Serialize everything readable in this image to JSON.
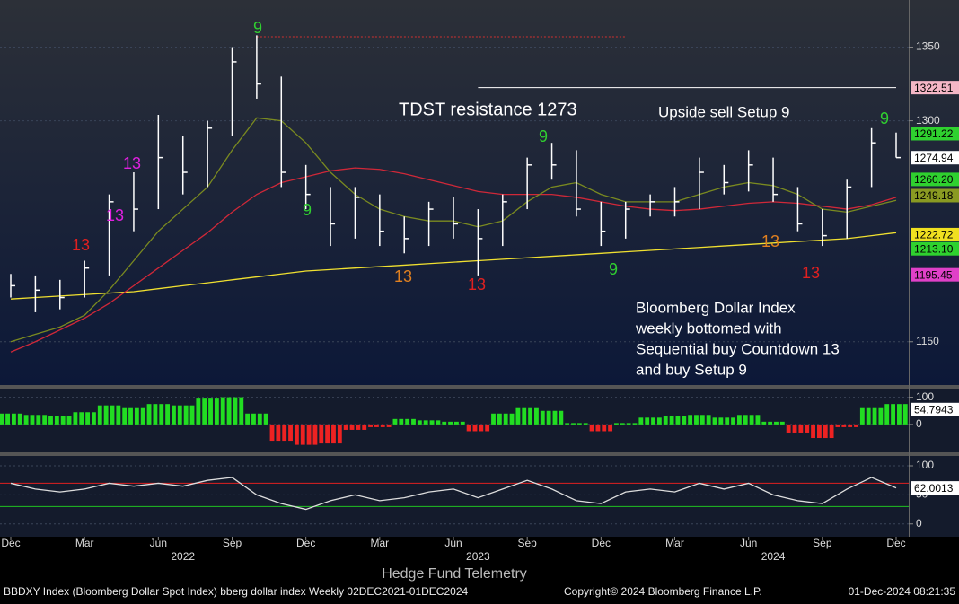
{
  "chart_data": [
    {
      "type": "ohlc",
      "x": [
        "2021-12",
        "2022-01",
        "2022-02",
        "2022-03",
        "2022-04",
        "2022-05",
        "2022-06",
        "2022-07",
        "2022-08",
        "2022-09",
        "2022-10",
        "2022-11",
        "2022-12",
        "2023-01",
        "2023-02",
        "2023-03",
        "2023-04",
        "2023-05",
        "2023-06",
        "2023-07",
        "2023-08",
        "2023-09",
        "2023-10",
        "2023-11",
        "2023-12",
        "2024-01",
        "2024-02",
        "2024-03",
        "2024-04",
        "2024-05",
        "2024-06",
        "2024-07",
        "2024-08",
        "2024-09",
        "2024-10",
        "2024-11",
        "2024-12"
      ],
      "high": [
        1196,
        1195,
        1192,
        1205,
        1250,
        1265,
        1304,
        1290,
        1300,
        1350,
        1358,
        1330,
        1270,
        1255,
        1255,
        1250,
        1235,
        1245,
        1248,
        1240,
        1250,
        1275,
        1285,
        1280,
        1245,
        1245,
        1250,
        1255,
        1275,
        1270,
        1280,
        1275,
        1255,
        1240,
        1260,
        1295,
        1292
      ],
      "low": [
        1180,
        1170,
        1172,
        1180,
        1195,
        1225,
        1240,
        1250,
        1255,
        1290,
        1315,
        1255,
        1240,
        1215,
        1220,
        1215,
        1210,
        1215,
        1220,
        1195,
        1215,
        1240,
        1260,
        1235,
        1215,
        1220,
        1235,
        1235,
        1240,
        1250,
        1252,
        1245,
        1225,
        1215,
        1220,
        1255,
        1275
      ],
      "close": [
        1188,
        1185,
        1180,
        1200,
        1245,
        1240,
        1275,
        1265,
        1295,
        1340,
        1325,
        1265,
        1250,
        1230,
        1248,
        1225,
        1220,
        1240,
        1230,
        1220,
        1245,
        1270,
        1270,
        1240,
        1225,
        1240,
        1245,
        1245,
        1265,
        1258,
        1270,
        1250,
        1230,
        1222,
        1255,
        1285,
        1275
      ],
      "bar_color": "#ffffff",
      "moving_averages": [
        {
          "color": "#f0e030",
          "values": [
            1179,
            1180,
            1181,
            1182,
            1183,
            1184,
            1186,
            1188,
            1190,
            1192,
            1194,
            1196,
            1198,
            1199,
            1200,
            1201,
            1202,
            1203,
            1204,
            1205,
            1206,
            1207,
            1208,
            1209,
            1210,
            1211,
            1212,
            1213,
            1214,
            1215,
            1216,
            1217,
            1218,
            1219,
            1220,
            1222,
            1224
          ]
        },
        {
          "color": "#d02838",
          "values": [
            1143,
            1150,
            1158,
            1166,
            1176,
            1188,
            1200,
            1212,
            1224,
            1238,
            1250,
            1258,
            1262,
            1266,
            1268,
            1267,
            1264,
            1260,
            1256,
            1252,
            1250,
            1250,
            1250,
            1248,
            1245,
            1242,
            1240,
            1239,
            1240,
            1242,
            1244,
            1245,
            1244,
            1242,
            1240,
            1243,
            1248
          ]
        },
        {
          "color": "#7a8a20",
          "values": [
            1150,
            1155,
            1160,
            1168,
            1185,
            1205,
            1225,
            1240,
            1255,
            1280,
            1302,
            1300,
            1285,
            1265,
            1250,
            1240,
            1235,
            1232,
            1232,
            1228,
            1232,
            1245,
            1255,
            1258,
            1250,
            1245,
            1245,
            1245,
            1250,
            1255,
            1258,
            1256,
            1250,
            1240,
            1238,
            1242,
            1246
          ]
        }
      ],
      "ylim": [
        1120,
        1382
      ],
      "yticks": [
        1150,
        1300,
        1350
      ],
      "levels": [
        {
          "value": 1357,
          "from": "2022-10",
          "to": "2024-01",
          "color": "#d03030"
        },
        {
          "value": 1322.51,
          "from": "2023-07",
          "to": "2024-12",
          "color": "#ffffff"
        }
      ],
      "markers": [
        {
          "value": 1322.51,
          "color": "#f4b6c6"
        },
        {
          "value": 1291.22,
          "color": "#2fd12f"
        },
        {
          "value": 1274.94,
          "color": "#ffffff"
        },
        {
          "value": 1260.2,
          "label": "1260.20",
          "color": "#2fd12f"
        },
        {
          "value": 1249.18,
          "color": "#8a9a22"
        },
        {
          "value": 1222.72,
          "color": "#f0e020"
        },
        {
          "value": 1213.1,
          "label": "1213.10",
          "color": "#2fd12f"
        },
        {
          "value": 1195.45,
          "color": "#e040c8"
        }
      ],
      "annotations": [
        "TDST resistance 1273",
        "Upside sell Setup 9"
      ],
      "note": [
        "Bloomberg Dollar Index",
        "weekly bottomed with",
        "Sequential buy Countdown 13",
        "and buy Setup 9"
      ],
      "td_labels": [
        {
          "text": "13",
          "color": "#e020e0"
        },
        {
          "text": "13",
          "color": "#e020e0"
        },
        {
          "text": "13",
          "color": "#e02020"
        },
        {
          "text": "13",
          "color": "#e08020"
        },
        {
          "text": "13",
          "color": "#e02020"
        },
        {
          "text": "9",
          "color": "#30d030"
        },
        {
          "text": "9",
          "color": "#30d030"
        },
        {
          "text": "9",
          "color": "#30d030"
        },
        {
          "text": "13",
          "color": "#e08020"
        },
        {
          "text": "13",
          "color": "#e02020"
        },
        {
          "text": "9",
          "color": "#30d030"
        },
        {
          "text": "9",
          "color": "#30d030"
        }
      ],
      "xticks": [
        {
          "value": "2021-12",
          "label": "Dec"
        },
        {
          "value": "2022-03",
          "label": "Mar"
        },
        {
          "value": "2022-06",
          "label": "Jun"
        },
        {
          "value": "2022-09",
          "label": "Sep"
        },
        {
          "value": "2022-12",
          "label": "Dec"
        },
        {
          "value": "2023-03",
          "label": "Mar"
        },
        {
          "value": "2023-06",
          "label": "Jun"
        },
        {
          "value": "2023-09",
          "label": "Sep"
        },
        {
          "value": "2023-12",
          "label": "Dec"
        },
        {
          "value": "2024-03",
          "label": "Mar"
        },
        {
          "value": "2024-06",
          "label": "Jun"
        },
        {
          "value": "2024-09",
          "label": "Sep"
        },
        {
          "value": "2024-12",
          "label": "Dec"
        }
      ],
      "years": [
        {
          "value": "2022-07",
          "label": "2022"
        },
        {
          "value": "2023-07",
          "label": "2023"
        },
        {
          "value": "2024-07",
          "label": "2024"
        }
      ]
    },
    {
      "type": "bar",
      "values": [
        40,
        35,
        30,
        45,
        70,
        60,
        75,
        70,
        95,
        100,
        40,
        -60,
        -75,
        -70,
        -20,
        -10,
        20,
        15,
        10,
        -25,
        40,
        60,
        50,
        5,
        -25,
        5,
        25,
        30,
        35,
        25,
        35,
        10,
        -30,
        -50,
        -10,
        60,
        75
      ],
      "positive_color": "#22dd22",
      "negative_color": "#ee2222",
      "ylim": [
        -106,
        135
      ],
      "yticks": [
        0,
        100
      ],
      "markers": [
        {
          "value": 54.7943,
          "color": "#ffffff"
        }
      ]
    },
    {
      "type": "line",
      "values": [
        70,
        60,
        55,
        60,
        70,
        65,
        70,
        65,
        75,
        80,
        50,
        35,
        25,
        40,
        50,
        40,
        45,
        55,
        60,
        45,
        60,
        75,
        60,
        40,
        35,
        55,
        60,
        55,
        70,
        60,
        70,
        50,
        40,
        35,
        60,
        80,
        62
      ],
      "color": "#dddddd",
      "ylim": [
        -22,
        117
      ],
      "yticks": [
        0,
        50,
        100
      ],
      "levels": [
        {
          "value": 70,
          "color": "#e02020"
        },
        {
          "value": 30,
          "color": "#20c020"
        }
      ],
      "markers": [
        {
          "value": 62.0013,
          "color": "#ffffff"
        }
      ]
    }
  ],
  "footer": {
    "brand": "Hedge Fund Telemetry",
    "security": "BBDXY Index (Bloomberg Dollar Spot Index) bberg dollar index  Weekly 02DEC2021-01DEC2024",
    "copyright": "Copyright© 2024 Bloomberg Finance L.P.",
    "timestamp": "01-Dec-2024 08:21:35"
  }
}
